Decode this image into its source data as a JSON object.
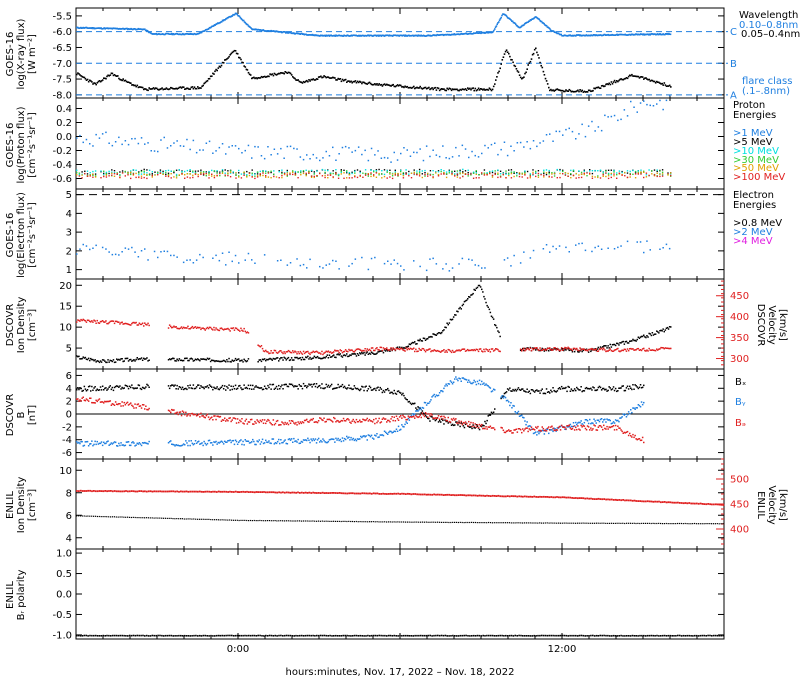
{
  "figure": {
    "xaxis_label": "hours:minutes, Nov. 17, 2022 – Nov. 18, 2022",
    "xticks": [
      "0:00",
      "12:00"
    ]
  },
  "colors": {
    "black": "#000000",
    "blue": "#1f7fe0",
    "cyan": "#00e0e0",
    "green": "#33cc33",
    "orange": "#e0a000",
    "red": "#e02020",
    "magenta": "#e020e0"
  },
  "chart_data": [
    {
      "type": "line",
      "ylabel": [
        "GOES-16",
        "log(X-ray flux)",
        "[W m⁻²]"
      ],
      "ylim": [
        -8.1,
        -5.25
      ],
      "yticks": [
        "-5.5",
        "-6.0",
        "-6.5",
        "-7.0",
        "-7.5",
        "-8.0"
      ],
      "legend_title": "Wavelength",
      "flare_label": [
        "flare class",
        "(.1–.8nm)"
      ],
      "flare_levels": [
        {
          "label": "C",
          "value": -6.0
        },
        {
          "label": "B",
          "value": -7.0
        },
        {
          "label": "A",
          "value": -8.0
        }
      ],
      "series": [
        {
          "name": "0.10–0.8nm",
          "color": "blue",
          "x": [
            -6,
            -3.5,
            -3.2,
            -1.5,
            -0.1,
            0.5,
            3,
            7,
            9.4,
            9.8,
            10.4,
            11,
            11.6,
            12,
            16
          ],
          "y": [
            -5.85,
            -5.9,
            -6.05,
            -6.05,
            -5.4,
            -5.9,
            -6.1,
            -6.1,
            -6.0,
            -5.4,
            -5.85,
            -5.5,
            -5.95,
            -6.1,
            -6.05
          ]
        },
        {
          "name": "0.05–0.4nm",
          "color": "black",
          "x": [
            -6,
            -5.3,
            -4.7,
            -4.2,
            -3.5,
            -1.4,
            -0.15,
            0.5,
            1.8,
            2.3,
            3.1,
            4.1,
            5.2,
            7.5,
            9.4,
            9.9,
            10.5,
            11,
            11.5,
            12,
            13,
            14.6,
            16
          ],
          "y": [
            -7.3,
            -7.65,
            -7.3,
            -7.55,
            -7.8,
            -7.75,
            -6.55,
            -7.45,
            -7.25,
            -7.6,
            -7.4,
            -7.55,
            -7.65,
            -7.8,
            -7.8,
            -6.55,
            -7.5,
            -6.5,
            -7.8,
            -7.85,
            -7.85,
            -7.35,
            -7.7
          ]
        }
      ]
    },
    {
      "type": "scatter",
      "ylabel": [
        "GOES-16",
        "log(Proton flux)",
        "[cm⁻²s⁻¹sr⁻¹]"
      ],
      "ylim": [
        -0.75,
        0.55
      ],
      "yticks": [
        "0.4",
        "0.2",
        "0.0",
        "-0.2",
        "-0.4",
        "-0.6"
      ],
      "legend_title": [
        "Proton",
        "Energies"
      ],
      "series": [
        {
          "name": ">1 MeV",
          "color": "blue",
          "x": [
            -6,
            0,
            6,
            10,
            13,
            15
          ],
          "y": [
            0.0,
            -0.2,
            -0.25,
            -0.15,
            0.1,
            0.5
          ]
        },
        {
          "name": ">5 MeV",
          "color": "black",
          "x": [
            -6,
            16
          ],
          "y": [
            -0.5,
            -0.5
          ]
        },
        {
          "name": ">10 MeV",
          "color": "cyan",
          "x": [
            -6,
            16
          ],
          "y": [
            -0.5,
            -0.5
          ]
        },
        {
          "name": ">30 MeV",
          "color": "green",
          "x": [
            -6,
            16
          ],
          "y": [
            -0.52,
            -0.52
          ]
        },
        {
          "name": ">50 MeV",
          "color": "orange",
          "x": [
            -6,
            16
          ],
          "y": [
            -0.54,
            -0.54
          ]
        },
        {
          "name": ">100 MeV",
          "color": "red",
          "x": [
            -6,
            16
          ],
          "y": [
            -0.55,
            -0.55
          ]
        }
      ]
    },
    {
      "type": "scatter",
      "ylabel": [
        "GOES-16",
        "log(Electron flux)",
        "[cm⁻²s⁻¹sr⁻¹]"
      ],
      "ylim": [
        0.5,
        5.3
      ],
      "yticks": [
        "5",
        "4",
        "3",
        "2",
        "1"
      ],
      "dashed_level": 5.0,
      "legend_title": [
        "Electron",
        "Energies"
      ],
      "series": [
        {
          "name": ">0.8 MeV",
          "color": "black",
          "x": [],
          "y": []
        },
        {
          "name": ">2 MeV",
          "color": "blue",
          "x": [
            -6,
            -3,
            0,
            4,
            8,
            10,
            12,
            16
          ],
          "y": [
            2.2,
            1.8,
            1.6,
            1.4,
            1.3,
            1.5,
            2.3,
            2.2
          ]
        },
        {
          "name": ">4 MeV",
          "color": "magenta",
          "x": [],
          "y": []
        }
      ]
    },
    {
      "type": "scatter",
      "ylabel_left": [
        "DSCOVR",
        "Ion Density",
        "[cm⁻³]"
      ],
      "ylabel_right": [
        "DSCOVR",
        "Velocity",
        "[km/s]"
      ],
      "ylim": [
        0,
        21.5
      ],
      "yticks": [
        "20",
        "15",
        "10",
        "5"
      ],
      "ylim_right": [
        275,
        490
      ],
      "yticks_right": [
        "450",
        "400",
        "350",
        "300"
      ],
      "series": [
        {
          "name": "Ion Density",
          "color": "black",
          "x": [
            -6,
            -5,
            -3.8,
            -1.5,
            0.5,
            3,
            5,
            6.2,
            7.5,
            8.5,
            8.9,
            9.8,
            10.4,
            13,
            14.6,
            16
          ],
          "y": [
            3,
            2,
            2.5,
            2.4,
            2.2,
            3.0,
            4.0,
            5.5,
            9,
            17,
            20.5,
            6,
            5.0,
            4.5,
            7,
            10
          ]
        },
        {
          "name": "Velocity",
          "color": "red",
          "x": [
            -6,
            -3.8,
            -2,
            0.2,
            1,
            3,
            5,
            8,
            10,
            12,
            14,
            16
          ],
          "y": [
            392,
            385,
            375,
            370,
            318,
            315,
            325,
            320,
            322,
            325,
            322,
            325
          ]
        }
      ]
    },
    {
      "type": "scatter",
      "ylabel": [
        "DSCOVR",
        "B",
        "[nT]"
      ],
      "ylim": [
        -7,
        7
      ],
      "yticks": [
        "6",
        "4",
        "2",
        "0",
        "-2",
        "-4",
        "-6"
      ],
      "series": [
        {
          "name": "Bₓ",
          "color": "black",
          "x": [
            -6,
            -3,
            0,
            3,
            5,
            6,
            7,
            8,
            9,
            10,
            11,
            12,
            14,
            15
          ],
          "y": [
            4,
            4.4,
            4.2,
            4.5,
            4.0,
            3.5,
            -0.5,
            -1.5,
            -2,
            4,
            3.5,
            4,
            4,
            4.5
          ]
        },
        {
          "name": "Bᵧ",
          "color": "blue",
          "x": [
            -6,
            -3,
            0,
            3,
            5,
            6,
            7,
            8,
            9,
            10,
            11,
            12,
            13,
            14,
            15
          ],
          "y": [
            -4.5,
            -4.5,
            -4.3,
            -4.0,
            -3.5,
            -2,
            2,
            5.5,
            5.0,
            2,
            -3,
            -2,
            -1,
            -1,
            2
          ]
        },
        {
          "name": "Bₔ",
          "color": "red",
          "x": [
            -6,
            -5,
            -4,
            -3,
            0,
            2,
            3,
            5,
            6,
            7,
            8,
            10,
            12,
            14,
            15
          ],
          "y": [
            2.5,
            2.0,
            1.5,
            0.8,
            -1,
            -1.3,
            -0.8,
            -1.0,
            -0.5,
            0.0,
            -1,
            -2.5,
            -2,
            -2,
            -4
          ]
        }
      ]
    },
    {
      "type": "scatter",
      "ylabel_left": [
        "ENLIL",
        "Ion Density",
        "[cm⁻³]"
      ],
      "ylabel_right": [
        "ENLIL",
        "Velocity",
        "[km/s]"
      ],
      "ylim": [
        3,
        11
      ],
      "yticks": [
        "10",
        "8",
        "6",
        "4"
      ],
      "ylim_right": [
        360,
        540
      ],
      "yticks_right": [
        "500",
        "450",
        "400"
      ],
      "series": [
        {
          "name": "Ion Density",
          "color": "black",
          "x": [
            -6,
            0,
            6,
            12,
            18
          ],
          "y": [
            6.0,
            5.6,
            5.45,
            5.35,
            5.3
          ]
        },
        {
          "name": "Velocity",
          "color": "red",
          "x": [
            -6,
            0,
            6,
            12,
            18
          ],
          "y": [
            478,
            476,
            472,
            465,
            450
          ]
        }
      ]
    },
    {
      "type": "line",
      "ylabel": [
        "ENLIL",
        "Bᵣ polarity"
      ],
      "ylim": [
        -1.1,
        1.1
      ],
      "yticks": [
        "1.0",
        "0.5",
        "0.0",
        "-0.5",
        "-1.0"
      ],
      "series": [
        {
          "name": "Br polarity",
          "color": "black",
          "x": [
            -6,
            18
          ],
          "y": [
            -1.0,
            -1.0
          ]
        }
      ]
    }
  ]
}
